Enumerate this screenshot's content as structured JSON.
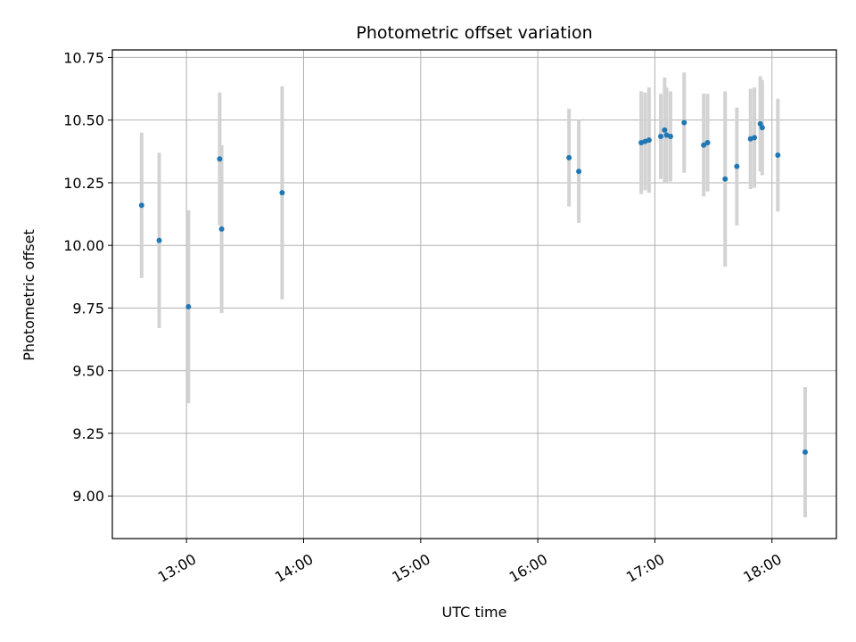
{
  "chart_data": {
    "type": "scatter",
    "title": "Photometric offset variation",
    "xlabel": "UTC time",
    "ylabel": "Photometric offset",
    "x_axis": {
      "min": "12:22",
      "max": "18:33",
      "ticks": [
        "13:00",
        "14:00",
        "15:00",
        "16:00",
        "17:00",
        "18:00"
      ]
    },
    "y_axis": {
      "min": 8.83,
      "max": 10.78,
      "ticks": [
        9.0,
        9.25,
        9.5,
        9.75,
        10.0,
        10.25,
        10.5,
        10.75
      ],
      "tick_labels": [
        "9.00",
        "9.25",
        "9.50",
        "9.75",
        "10.00",
        "10.25",
        "10.50",
        "10.75"
      ]
    },
    "grid": true,
    "colors": {
      "points": "#1f77b4",
      "errorbars": "#d3d3d3",
      "grid": "#b0b0b0"
    },
    "points": [
      {
        "x": "12:37",
        "y": 10.16,
        "err": 0.29
      },
      {
        "x": "12:46",
        "y": 10.02,
        "err": 0.35
      },
      {
        "x": "13:01",
        "y": 9.755,
        "err": 0.385
      },
      {
        "x": "13:17",
        "y": 10.345,
        "err": 0.265
      },
      {
        "x": "13:18",
        "y": 10.065,
        "err": 0.335
      },
      {
        "x": "13:49",
        "y": 10.21,
        "err": 0.425
      },
      {
        "x": "16:16",
        "y": 10.35,
        "err": 0.195
      },
      {
        "x": "16:21",
        "y": 10.295,
        "err": 0.205
      },
      {
        "x": "16:53",
        "y": 10.41,
        "err": 0.205
      },
      {
        "x": "16:55",
        "y": 10.415,
        "err": 0.195
      },
      {
        "x": "16:57",
        "y": 10.42,
        "err": 0.21
      },
      {
        "x": "17:03",
        "y": 10.435,
        "err": 0.17
      },
      {
        "x": "17:05",
        "y": 10.46,
        "err": 0.21
      },
      {
        "x": "17:06",
        "y": 10.44,
        "err": 0.19
      },
      {
        "x": "17:08",
        "y": 10.435,
        "err": 0.18
      },
      {
        "x": "17:15",
        "y": 10.49,
        "err": 0.2
      },
      {
        "x": "17:25",
        "y": 10.4,
        "err": 0.205
      },
      {
        "x": "17:27",
        "y": 10.41,
        "err": 0.195
      },
      {
        "x": "17:36",
        "y": 10.265,
        "err": 0.35
      },
      {
        "x": "17:42",
        "y": 10.315,
        "err": 0.235
      },
      {
        "x": "17:49",
        "y": 10.425,
        "err": 0.2
      },
      {
        "x": "17:51",
        "y": 10.43,
        "err": 0.2
      },
      {
        "x": "17:54",
        "y": 10.485,
        "err": 0.19
      },
      {
        "x": "17:55",
        "y": 10.47,
        "err": 0.19
      },
      {
        "x": "18:03",
        "y": 10.36,
        "err": 0.225
      },
      {
        "x": "18:17",
        "y": 9.175,
        "err": 0.26
      }
    ]
  }
}
